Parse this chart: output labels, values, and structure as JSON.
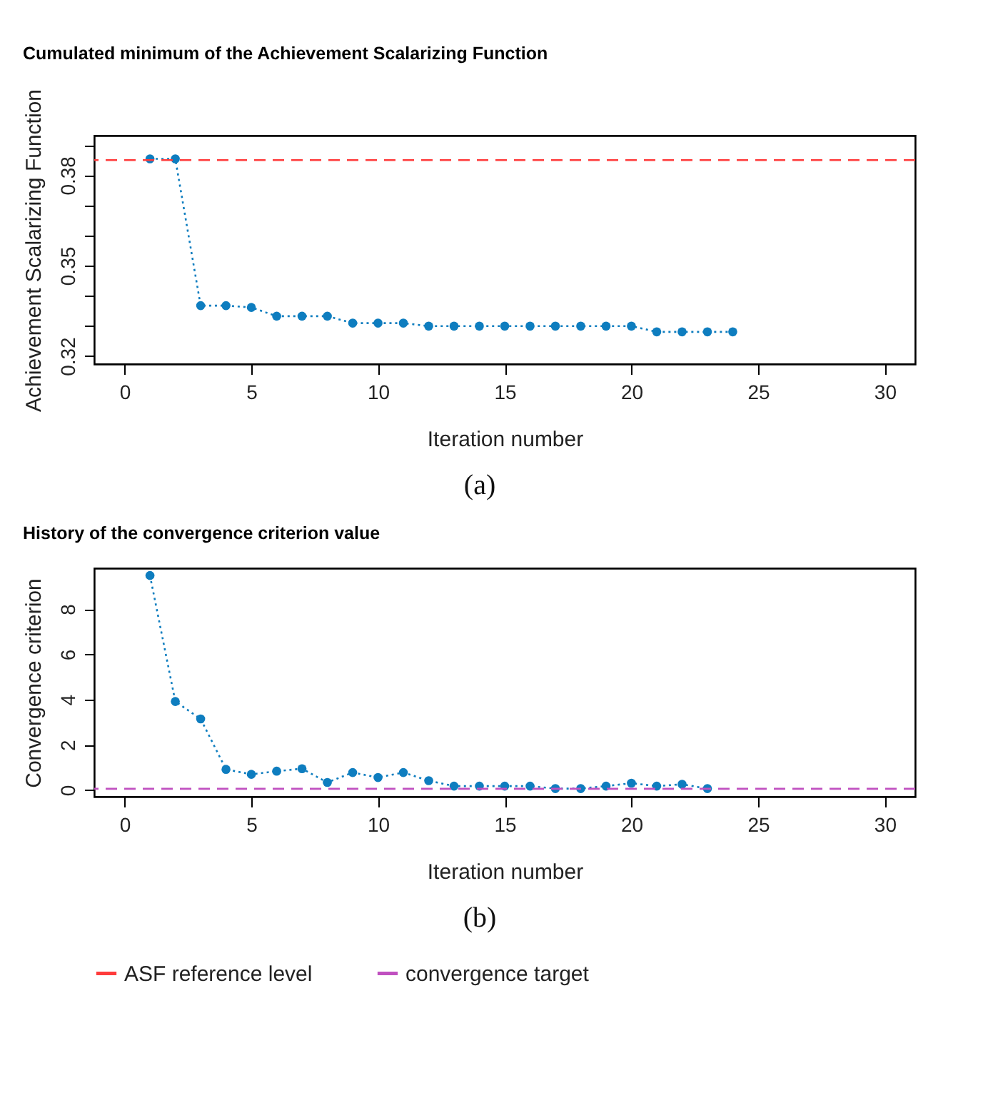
{
  "chart_data": [
    {
      "type": "line",
      "title": "Cumulated minimum of the Achievement Scalarizing Function",
      "xlabel": "Iteration number",
      "ylabel": "Achievement Scalarizing Function",
      "annotations": [
        "(a)"
      ],
      "x": [
        1,
        2,
        3,
        4,
        5,
        6,
        7,
        8,
        9,
        10,
        11,
        12,
        13,
        14,
        15,
        16,
        17,
        18,
        19,
        20,
        21,
        22,
        23,
        24
      ],
      "series": [
        {
          "color": "#0e7dbf",
          "values": [
            0.3854,
            0.3854,
            0.3367,
            0.3367,
            0.3361,
            0.3332,
            0.3332,
            0.3332,
            0.3309,
            0.3309,
            0.3309,
            0.3299,
            0.3299,
            0.3299,
            0.3299,
            0.3299,
            0.3299,
            0.3299,
            0.3299,
            0.3299,
            0.328,
            0.328,
            0.328,
            0.328
          ]
        }
      ],
      "xlim": [
        -1.2,
        31.2
      ],
      "xticks": [
        0,
        5,
        10,
        15,
        20,
        25,
        30
      ],
      "ylim": [
        0.3173,
        0.3931
      ],
      "yticks": [
        0.32,
        {
          "value": 0.33,
          "label": null
        },
        {
          "value": 0.34,
          "label": null
        },
        0.35,
        {
          "value": 0.36,
          "label": null
        },
        {
          "value": 0.37,
          "label": null
        },
        0.38,
        {
          "value": 0.39,
          "label": null
        }
      ],
      "ref_lines": [
        {
          "axis": "y",
          "value": 0.385,
          "label": "ASF reference level",
          "color": "#ff3b3b",
          "line_style": "dashed"
        }
      ],
      "marker": "circle",
      "line_style": "dotted",
      "grid": false,
      "legend": "bottom"
    },
    {
      "type": "line",
      "title": "History of the convergence criterion value",
      "xlabel": "Iteration number",
      "ylabel": "Convergence criterion",
      "annotations": [
        "(b)"
      ],
      "x": [
        1,
        2,
        3,
        4,
        5,
        6,
        7,
        8,
        9,
        10,
        11,
        12,
        13,
        14,
        15,
        16,
        17,
        18,
        19,
        20,
        21,
        22,
        23
      ],
      "series": [
        {
          "color": "#0e7dbf",
          "values": [
            9.48,
            3.91,
            3.14,
            0.91,
            0.69,
            0.83,
            0.94,
            0.33,
            0.77,
            0.55,
            0.77,
            0.41,
            0.17,
            0.17,
            0.17,
            0.17,
            0.06,
            0.06,
            0.17,
            0.3,
            0.17,
            0.25,
            0.06
          ]
        }
      ],
      "xlim": [
        -1.2,
        31.2
      ],
      "xticks": [
        0,
        5,
        10,
        15,
        20,
        25,
        30
      ],
      "ylim": [
        -0.3,
        9.8
      ],
      "yticks": [
        0,
        2,
        4,
        6,
        8
      ],
      "ref_lines": [
        {
          "axis": "y",
          "value": 0.05,
          "label": "convergence target",
          "color": "#c050c0",
          "line_style": "dashed"
        }
      ],
      "marker": "circle",
      "line_style": "dotted",
      "grid": false,
      "legend": "bottom"
    }
  ]
}
